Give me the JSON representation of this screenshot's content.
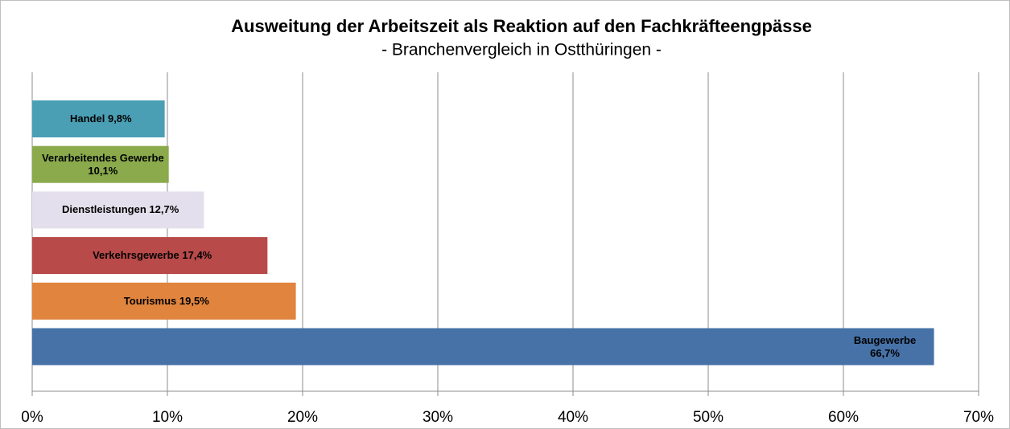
{
  "chart_data": {
    "type": "barh",
    "title": "Ausweitung der Arbeitszeit als Reaktion auf den Fachkräfteengpässe",
    "subtitle": "- Branchenvergleich in Ostthüringen -",
    "categories": [
      "Handel",
      "Verarbeitendes Gewerbe",
      "Dienstleistungen",
      "Verkehrsgewerbe",
      "Tourismus",
      "Baugewerbe"
    ],
    "values": [
      9.8,
      10.1,
      12.7,
      17.4,
      19.5,
      66.7
    ],
    "value_labels": [
      "9,8%",
      "10,1%",
      "12,7%",
      "17,4%",
      "19,5%",
      "66,7%"
    ],
    "colors": [
      "#4a9fb5",
      "#8aaa4c",
      "#e4dfec",
      "#b84a49",
      "#e0843e",
      "#4672a8"
    ],
    "xlim": [
      0,
      70
    ],
    "xticks": [
      {
        "value": 0,
        "label": "0%"
      },
      {
        "value": 10,
        "label": "10%"
      },
      {
        "value": 20,
        "label": "20%"
      },
      {
        "value": 30,
        "label": "30%"
      },
      {
        "value": 40,
        "label": "40%"
      },
      {
        "value": 50,
        "label": "50%"
      },
      {
        "value": 60,
        "label": "60%"
      },
      {
        "value": 70,
        "label": "70%"
      }
    ],
    "grid": true
  }
}
